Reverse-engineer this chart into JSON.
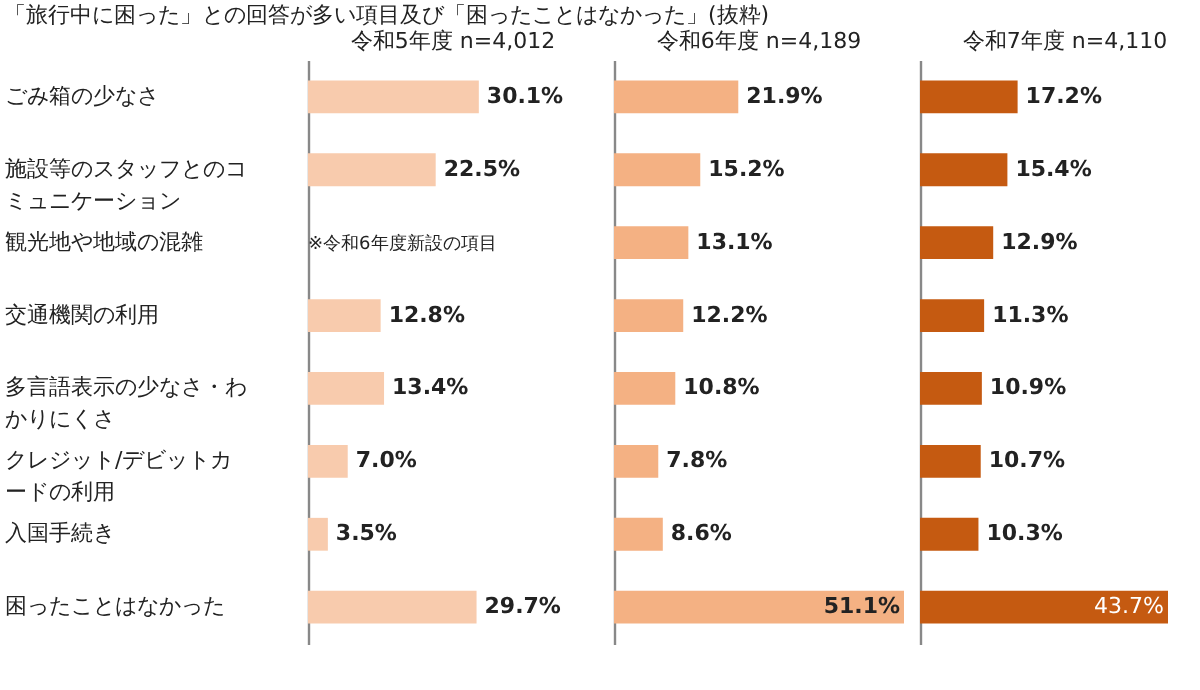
{
  "chart_data": [
    {
      "type": "bar",
      "orientation": "horizontal",
      "title": "「旅行中に困った」との回答が多い項目及び「困ったことはなかった」(抜粋)",
      "subtitle": "令和5年度 n=4,012",
      "categories": [
        "ごみ箱の少なさ",
        "施設等のスタッフとのコミュニケーション",
        "観光地や地域の混雑",
        "交通機関の利用",
        "多言語表示の少なさ・わかりにくさ",
        "クレジット/デビットカードの利用",
        "入国手続き",
        "困ったことはなかった"
      ],
      "values": [
        30.1,
        22.5,
        null,
        12.8,
        13.4,
        7.0,
        3.5,
        29.7
      ],
      "value_labels": [
        "30.1%",
        "22.5%",
        null,
        "12.8%",
        "13.4%",
        "7.0%",
        "3.5%",
        "29.7%"
      ],
      "color": "#f8cbad",
      "tick_labels": "y",
      "annotations": [
        "※令和6年度新設の項目"
      ]
    },
    {
      "type": "bar",
      "orientation": "horizontal",
      "subtitle": "令和6年度 n=4,189",
      "categories": [
        "ごみ箱の少なさ",
        "施設等のスタッフとのコミュニケーション",
        "観光地や地域の混雑",
        "交通機関の利用",
        "多言語表示の少なさ・わかりにくさ",
        "クレジット/デビットカードの利用",
        "入国手続き",
        "困ったことはなかった"
      ],
      "values": [
        21.9,
        15.2,
        13.1,
        12.2,
        10.8,
        7.8,
        8.6,
        51.1
      ],
      "value_labels": [
        "21.9%",
        "15.2%",
        "13.1%",
        "12.2%",
        "10.8%",
        "7.8%",
        "8.6%",
        "51.1%"
      ],
      "color": "#f4b183",
      "tick_labels": false
    },
    {
      "type": "bar",
      "orientation": "horizontal",
      "subtitle": "令和7年度 n=4,110",
      "categories": [
        "ごみ箱の少なさ",
        "施設等のスタッフとのコミュニケーション",
        "観光地や地域の混雑",
        "交通機関の利用",
        "多言語表示の少なさ・わかりにくさ",
        "クレジット/デビットカードの利用",
        "入国手続き",
        "困ったことはなかった"
      ],
      "values": [
        17.2,
        15.4,
        12.9,
        11.3,
        10.9,
        10.7,
        10.3,
        43.7
      ],
      "value_labels": [
        "17.2%",
        "15.4%",
        "12.9%",
        "11.3%",
        "10.9%",
        "10.7%",
        "10.3%",
        "43.7%"
      ],
      "color": "#c55a11",
      "tick_labels": false
    }
  ]
}
